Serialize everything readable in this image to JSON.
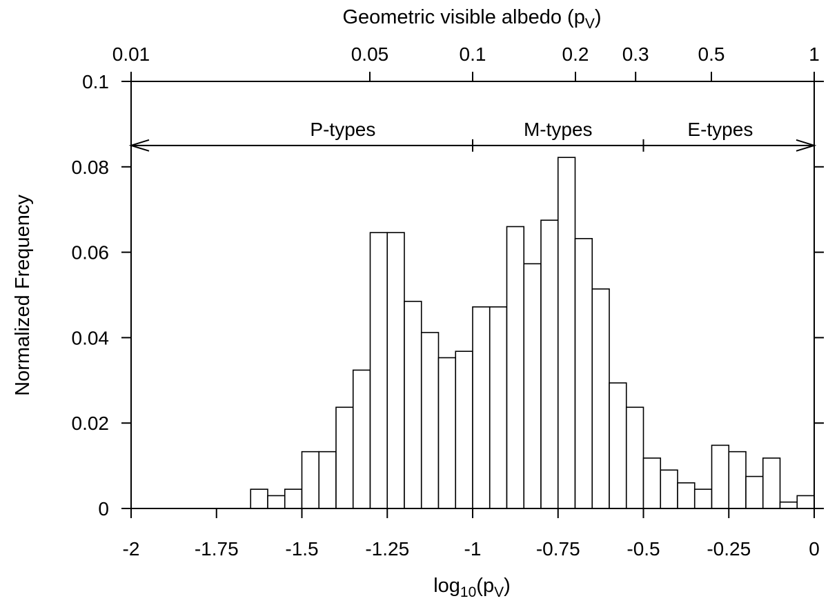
{
  "chart_data": {
    "type": "bar",
    "xlabel": "log10(pV)",
    "ylabel": "Normalized Frequency",
    "top_axis_label": "Geometric visible albedo (pV)",
    "xlim": [
      -2,
      0
    ],
    "ylim": [
      0,
      0.1
    ],
    "x_ticks": [
      -2,
      -1.75,
      -1.5,
      -1.25,
      -1,
      -0.75,
      -0.5,
      -0.25,
      0
    ],
    "x_tick_labels": [
      "-2",
      "-1.75",
      "-1.5",
      "-1.25",
      "-1",
      "-0.75",
      "-0.5",
      "-0.25",
      "0"
    ],
    "y_ticks": [
      0,
      0.02,
      0.04,
      0.06,
      0.08,
      0.1
    ],
    "y_tick_labels": [
      "0",
      "0.02",
      "0.04",
      "0.06",
      "0.08",
      "0.1"
    ],
    "top_ticks": [
      0.01,
      0.05,
      0.1,
      0.2,
      0.3,
      0.5,
      1
    ],
    "top_tick_labels": [
      "0.01",
      "0.05",
      "0.1",
      "0.2",
      "0.3",
      "0.5",
      "1"
    ],
    "bin_width": 0.05,
    "bin_edges_start": [
      -1.65,
      -1.6,
      -1.55,
      -1.5,
      -1.45,
      -1.4,
      -1.35,
      -1.3,
      -1.25,
      -1.2,
      -1.15,
      -1.1,
      -1.05,
      -1.0,
      -0.95,
      -0.9,
      -0.85,
      -0.8,
      -0.75,
      -0.7,
      -0.65,
      -0.6,
      -0.55,
      -0.5,
      -0.45,
      -0.4,
      -0.35,
      -0.3,
      -0.25,
      -0.2,
      -0.15,
      -0.1,
      -0.05
    ],
    "values": [
      0.0045,
      0.003,
      0.0045,
      0.0133,
      0.0133,
      0.0237,
      0.0324,
      0.0646,
      0.0646,
      0.0485,
      0.0412,
      0.0353,
      0.0368,
      0.0472,
      0.0472,
      0.066,
      0.0573,
      0.0675,
      0.0822,
      0.0632,
      0.0514,
      0.0294,
      0.0237,
      0.0118,
      0.009,
      0.006,
      0.0045,
      0.0148,
      0.0133,
      0.0075,
      0.0118,
      0.0015,
      0.003
    ],
    "regions": [
      {
        "label": "P-types",
        "from": -2,
        "to": -1
      },
      {
        "label": "M-types",
        "from": -1,
        "to": -0.5
      },
      {
        "label": "E-types",
        "from": -0.5,
        "to": 0
      }
    ],
    "region_arrow_y": 0.085,
    "grid": false
  }
}
